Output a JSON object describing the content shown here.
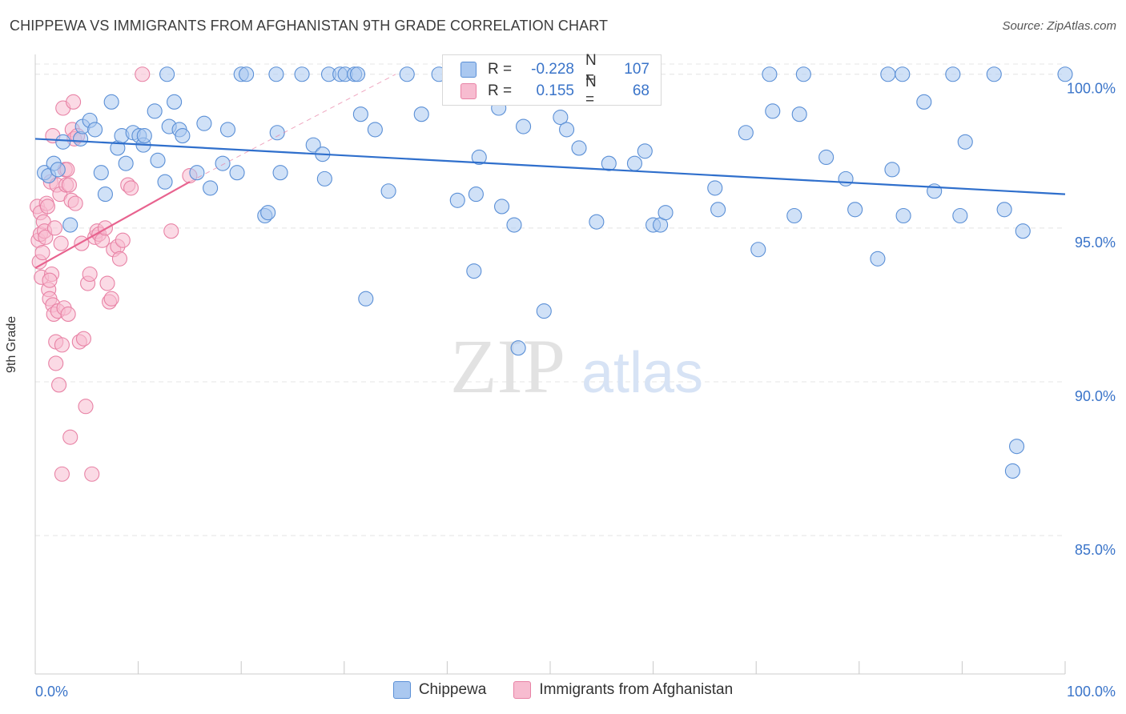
{
  "title": "CHIPPEWA VS IMMIGRANTS FROM AFGHANISTAN 9TH GRADE CORRELATION CHART",
  "source": "Source: ZipAtlas.com",
  "watermark": {
    "zip": "ZIP",
    "atlas": "atlas"
  },
  "colors": {
    "chippewa_fill": "#aac8f0",
    "chippewa_stroke": "#5a8fd6",
    "chippewa_line": "#2f6fcc",
    "afghan_fill": "#f7bcd0",
    "afghan_stroke": "#e882a5",
    "afghan_line": "#e8638f",
    "axis_label": "#3a74c9",
    "grid": "#e4e4e4"
  },
  "stats": [
    {
      "r_label": "R =",
      "r": "-0.228",
      "n_label": "N =",
      "n": "107"
    },
    {
      "r_label": "R =",
      "r": "0.155",
      "n_label": "N =",
      "n": "68"
    }
  ],
  "chart_data": {
    "type": "scatter",
    "xlabel": "",
    "ylabel": "9th Grade",
    "xlim": [
      0,
      100
    ],
    "ylim": [
      80.5,
      100.8
    ],
    "x_tick_labels": [
      "0.0%",
      "100.0%"
    ],
    "y_ticks": [
      85,
      90,
      95,
      100
    ],
    "y_tick_labels": [
      "85.0%",
      "90.0%",
      "95.0%",
      "100.0%"
    ],
    "grid": true,
    "legend": "bottom-center",
    "series": [
      {
        "name": "Chippewa",
        "trend": {
          "x": [
            0,
            100
          ],
          "y": [
            97.9,
            96.1
          ]
        },
        "points": [
          [
            0.9,
            96.8
          ],
          [
            1.3,
            96.7
          ],
          [
            1.8,
            97.1
          ],
          [
            2.2,
            96.9
          ],
          [
            2.7,
            97.8
          ],
          [
            3.4,
            95.1
          ],
          [
            4.4,
            97.9
          ],
          [
            4.6,
            98.3
          ],
          [
            5.3,
            98.5
          ],
          [
            5.8,
            98.2
          ],
          [
            6.4,
            96.8
          ],
          [
            6.8,
            96.1
          ],
          [
            7.4,
            99.1
          ],
          [
            8.0,
            97.6
          ],
          [
            8.4,
            98.0
          ],
          [
            8.8,
            97.1
          ],
          [
            9.5,
            98.1
          ],
          [
            10.1,
            98.0
          ],
          [
            10.5,
            97.7
          ],
          [
            10.6,
            98.0
          ],
          [
            11.6,
            98.8
          ],
          [
            11.9,
            97.2
          ],
          [
            12.6,
            96.5
          ],
          [
            12.8,
            100.0
          ],
          [
            13.0,
            98.3
          ],
          [
            13.5,
            99.1
          ],
          [
            14.0,
            98.2
          ],
          [
            14.3,
            98.0
          ],
          [
            15.7,
            96.8
          ],
          [
            16.4,
            98.4
          ],
          [
            17.0,
            96.3
          ],
          [
            18.2,
            97.1
          ],
          [
            18.7,
            98.2
          ],
          [
            19.6,
            96.8
          ],
          [
            20.0,
            100.0
          ],
          [
            20.5,
            100.0
          ],
          [
            22.3,
            95.4
          ],
          [
            22.6,
            95.5
          ],
          [
            23.4,
            100.0
          ],
          [
            23.5,
            98.1
          ],
          [
            23.8,
            96.8
          ],
          [
            25.9,
            100.0
          ],
          [
            27.0,
            97.7
          ],
          [
            27.9,
            97.4
          ],
          [
            28.1,
            96.6
          ],
          [
            28.5,
            100.0
          ],
          [
            29.6,
            100.0
          ],
          [
            30.1,
            100.0
          ],
          [
            31.0,
            100.0
          ],
          [
            31.3,
            100.0
          ],
          [
            31.6,
            98.7
          ],
          [
            32.1,
            92.7
          ],
          [
            33.0,
            98.2
          ],
          [
            34.3,
            96.2
          ],
          [
            36.1,
            100.0
          ],
          [
            37.5,
            98.7
          ],
          [
            39.2,
            100.0
          ],
          [
            41.0,
            95.9
          ],
          [
            41.4,
            100.0
          ],
          [
            42.6,
            93.6
          ],
          [
            42.8,
            96.1
          ],
          [
            43.1,
            97.3
          ],
          [
            45.0,
            98.9
          ],
          [
            45.3,
            95.7
          ],
          [
            46.5,
            95.1
          ],
          [
            46.9,
            91.1
          ],
          [
            47.4,
            98.3
          ],
          [
            49.4,
            92.3
          ],
          [
            49.5,
            100.0
          ],
          [
            51.0,
            98.6
          ],
          [
            51.6,
            98.2
          ],
          [
            52.8,
            97.6
          ],
          [
            54.5,
            95.2
          ],
          [
            55.7,
            97.1
          ],
          [
            58.2,
            97.1
          ],
          [
            59.2,
            97.5
          ],
          [
            60.0,
            95.1
          ],
          [
            60.7,
            95.1
          ],
          [
            61.2,
            95.5
          ],
          [
            66.0,
            96.3
          ],
          [
            66.3,
            95.6
          ],
          [
            69.0,
            98.1
          ],
          [
            70.2,
            94.3
          ],
          [
            71.3,
            100.0
          ],
          [
            71.6,
            98.8
          ],
          [
            73.7,
            95.4
          ],
          [
            74.2,
            98.7
          ],
          [
            74.6,
            100.0
          ],
          [
            76.8,
            97.3
          ],
          [
            78.7,
            96.6
          ],
          [
            79.6,
            95.6
          ],
          [
            81.8,
            94.0
          ],
          [
            82.8,
            100.0
          ],
          [
            83.2,
            96.9
          ],
          [
            84.2,
            100.0
          ],
          [
            84.3,
            95.4
          ],
          [
            86.3,
            99.1
          ],
          [
            87.3,
            96.2
          ],
          [
            89.1,
            100.0
          ],
          [
            89.8,
            95.4
          ],
          [
            90.3,
            97.8
          ],
          [
            93.1,
            100.0
          ],
          [
            94.1,
            95.6
          ],
          [
            94.9,
            87.1
          ],
          [
            95.3,
            87.9
          ],
          [
            95.9,
            94.9
          ],
          [
            100.0,
            100.0
          ]
        ]
      },
      {
        "name": "Immigrants from Afghanistan",
        "trend": {
          "x": [
            0,
            15
          ],
          "y": [
            93.7,
            96.5
          ]
        },
        "trend_ext": {
          "x": [
            15,
            35
          ],
          "y": [
            96.5,
            100.0
          ]
        },
        "points": [
          [
            0.2,
            95.7
          ],
          [
            0.3,
            94.6
          ],
          [
            0.4,
            93.9
          ],
          [
            0.5,
            95.5
          ],
          [
            0.5,
            94.8
          ],
          [
            0.6,
            93.4
          ],
          [
            0.7,
            94.2
          ],
          [
            0.8,
            95.2
          ],
          [
            0.9,
            94.9
          ],
          [
            1.0,
            94.7
          ],
          [
            1.1,
            95.8
          ],
          [
            1.2,
            95.7
          ],
          [
            1.3,
            93.0
          ],
          [
            1.4,
            92.7
          ],
          [
            1.5,
            96.5
          ],
          [
            1.6,
            93.5
          ],
          [
            1.7,
            92.5
          ],
          [
            1.8,
            92.2
          ],
          [
            1.9,
            95.0
          ],
          [
            2.0,
            91.3
          ],
          [
            2.1,
            96.4
          ],
          [
            2.2,
            92.3
          ],
          [
            2.3,
            89.9
          ],
          [
            2.4,
            96.1
          ],
          [
            2.5,
            94.5
          ],
          [
            2.6,
            91.2
          ],
          [
            2.7,
            98.9
          ],
          [
            2.8,
            92.4
          ],
          [
            2.9,
            96.9
          ],
          [
            3.0,
            96.4
          ],
          [
            3.1,
            96.9
          ],
          [
            3.2,
            92.2
          ],
          [
            3.3,
            96.4
          ],
          [
            3.4,
            88.2
          ],
          [
            3.5,
            95.9
          ],
          [
            3.6,
            98.2
          ],
          [
            3.7,
            99.1
          ],
          [
            3.8,
            97.9
          ],
          [
            3.9,
            95.8
          ],
          [
            4.1,
            98.0
          ],
          [
            4.3,
            91.3
          ],
          [
            4.5,
            94.5
          ],
          [
            4.7,
            91.4
          ],
          [
            4.9,
            89.2
          ],
          [
            5.1,
            93.2
          ],
          [
            5.3,
            93.5
          ],
          [
            5.5,
            87.0
          ],
          [
            5.8,
            94.7
          ],
          [
            6.0,
            94.9
          ],
          [
            6.2,
            94.8
          ],
          [
            6.5,
            94.6
          ],
          [
            6.8,
            95.0
          ],
          [
            7.0,
            93.2
          ],
          [
            7.2,
            92.6
          ],
          [
            7.4,
            92.7
          ],
          [
            7.6,
            94.3
          ],
          [
            8.0,
            94.4
          ],
          [
            8.2,
            94.0
          ],
          [
            8.5,
            94.6
          ],
          [
            9.0,
            96.4
          ],
          [
            9.3,
            96.3
          ],
          [
            10.4,
            100.0
          ],
          [
            13.2,
            94.9
          ],
          [
            15.0,
            96.7
          ],
          [
            2.6,
            87.0
          ],
          [
            2.0,
            90.6
          ],
          [
            1.4,
            93.3
          ],
          [
            1.7,
            98.0
          ]
        ]
      }
    ]
  }
}
